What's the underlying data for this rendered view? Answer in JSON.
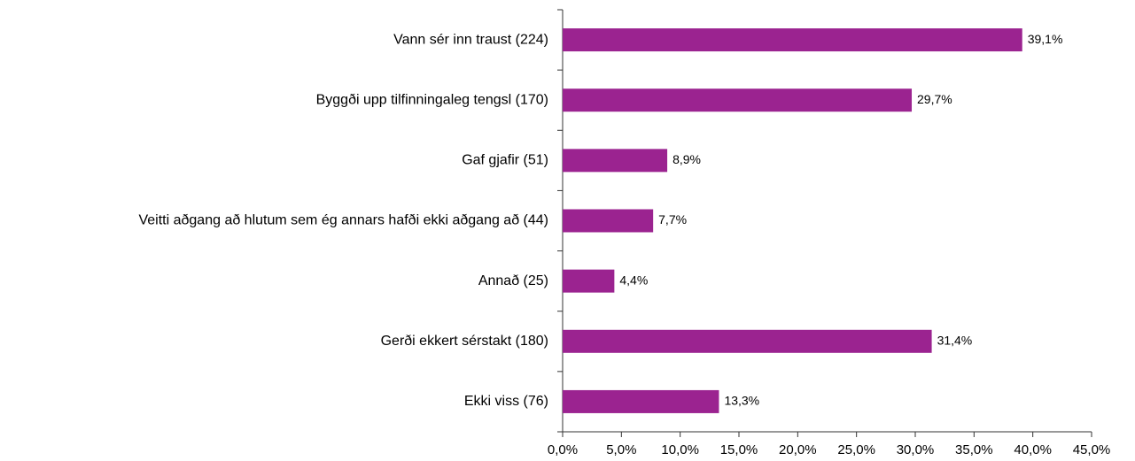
{
  "chart_data": {
    "type": "bar",
    "orientation": "horizontal",
    "categories": [
      "Vann sér inn traust (224)",
      "Byggði upp tilfinningaleg tengsl (170)",
      "Gaf gjafir (51)",
      "Veitti aðgang að hlutum sem ég annars hafði ekki aðgang að (44)",
      "Annað (25)",
      "Gerði ekkert sérstakt (180)",
      "Ekki viss (76)"
    ],
    "values": [
      39.1,
      29.7,
      8.9,
      7.7,
      4.4,
      31.4,
      13.3
    ],
    "value_labels": [
      "39,1%",
      "29,7%",
      "8,9%",
      "7,7%",
      "4,4%",
      "31,4%",
      "13,3%"
    ],
    "color": "#9b2390",
    "xlim": [
      0,
      45
    ],
    "xticks": [
      {
        "value": 0,
        "label": "0,0%"
      },
      {
        "value": 5,
        "label": "5,0%"
      },
      {
        "value": 10,
        "label": "10,0%"
      },
      {
        "value": 15,
        "label": "15,0%"
      },
      {
        "value": 20,
        "label": "20,0%"
      },
      {
        "value": 25,
        "label": "25,0%"
      },
      {
        "value": 30,
        "label": "30,0%"
      },
      {
        "value": 35,
        "label": "35,0%"
      },
      {
        "value": 40,
        "label": "40,0%"
      },
      {
        "value": 45,
        "label": "45,0%"
      }
    ]
  }
}
